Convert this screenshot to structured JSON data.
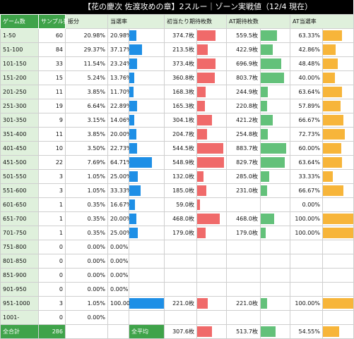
{
  "title": "【花の慶次 佐渡攻めの章】2スルー｜ゾーン実戦値（12/4 現在）",
  "headers": {
    "zone": "ゲーム数",
    "samples": "サンプル数",
    "distribution": "振分",
    "hit_rate": "当選率",
    "avg_bonus": "初当たり期待枚数",
    "at_bonus": "AT期待枚数",
    "at_hit_rate": "AT当選率"
  },
  "colors": {
    "header_green": "#3fa34a",
    "zone_bg": "#dff0dc",
    "hit_rate_bar": "#1e8fe6",
    "avg_bar": "#f06a6a",
    "at_bar": "#63c17a",
    "at_rate_bar": "#f7b53a"
  },
  "rows": [
    {
      "zone": "1-50",
      "samples": "60",
      "dist": "20.98%",
      "rate": "20.98%",
      "rate_v": 20.98,
      "avg": "374.7枚",
      "avg_v": 374.7,
      "at": "559.5枚",
      "at_v": 559.5,
      "atr": "63.33%",
      "atr_v": 63.33
    },
    {
      "zone": "51-100",
      "samples": "84",
      "dist": "29.37%",
      "rate": "37.17%",
      "rate_v": 37.17,
      "avg": "213.5枚",
      "avg_v": 213.5,
      "at": "422.9枚",
      "at_v": 422.9,
      "atr": "42.86%",
      "atr_v": 42.86
    },
    {
      "zone": "101-150",
      "samples": "33",
      "dist": "11.54%",
      "rate": "23.24%",
      "rate_v": 23.24,
      "avg": "373.4枚",
      "avg_v": 373.4,
      "at": "696.9枚",
      "at_v": 696.9,
      "atr": "48.48%",
      "atr_v": 48.48
    },
    {
      "zone": "151-200",
      "samples": "15",
      "dist": "5.24%",
      "rate": "13.76%",
      "rate_v": 13.76,
      "avg": "360.8枚",
      "avg_v": 360.8,
      "at": "803.7枚",
      "at_v": 803.7,
      "atr": "40.00%",
      "atr_v": 40.0
    },
    {
      "zone": "201-250",
      "samples": "11",
      "dist": "3.85%",
      "rate": "11.70%",
      "rate_v": 11.7,
      "avg": "168.3枚",
      "avg_v": 168.3,
      "at": "244.9枚",
      "at_v": 244.9,
      "atr": "63.64%",
      "atr_v": 63.64
    },
    {
      "zone": "251-300",
      "samples": "19",
      "dist": "6.64%",
      "rate": "22.89%",
      "rate_v": 22.89,
      "avg": "165.3枚",
      "avg_v": 165.3,
      "at": "220.8枚",
      "at_v": 220.8,
      "atr": "57.89%",
      "atr_v": 57.89
    },
    {
      "zone": "301-350",
      "samples": "9",
      "dist": "3.15%",
      "rate": "14.06%",
      "rate_v": 14.06,
      "avg": "304.1枚",
      "avg_v": 304.1,
      "at": "421.2枚",
      "at_v": 421.2,
      "atr": "66.67%",
      "atr_v": 66.67
    },
    {
      "zone": "351-400",
      "samples": "11",
      "dist": "3.85%",
      "rate": "20.00%",
      "rate_v": 20.0,
      "avg": "204.7枚",
      "avg_v": 204.7,
      "at": "254.8枚",
      "at_v": 254.8,
      "atr": "72.73%",
      "atr_v": 72.73
    },
    {
      "zone": "401-450",
      "samples": "10",
      "dist": "3.50%",
      "rate": "22.73%",
      "rate_v": 22.73,
      "avg": "544.5枚",
      "avg_v": 544.5,
      "at": "883.7枚",
      "at_v": 883.7,
      "atr": "60.00%",
      "atr_v": 60.0
    },
    {
      "zone": "451-500",
      "samples": "22",
      "dist": "7.69%",
      "rate": "64.71%",
      "rate_v": 64.71,
      "avg": "548.9枚",
      "avg_v": 548.9,
      "at": "829.7枚",
      "at_v": 829.7,
      "atr": "63.64%",
      "atr_v": 63.64
    },
    {
      "zone": "501-550",
      "samples": "3",
      "dist": "1.05%",
      "rate": "25.00%",
      "rate_v": 25.0,
      "avg": "132.0枚",
      "avg_v": 132.0,
      "at": "285.0枚",
      "at_v": 285.0,
      "atr": "33.33%",
      "atr_v": 33.33
    },
    {
      "zone": "551-600",
      "samples": "3",
      "dist": "1.05%",
      "rate": "33.33%",
      "rate_v": 33.33,
      "avg": "185.0枚",
      "avg_v": 185.0,
      "at": "231.0枚",
      "at_v": 231.0,
      "atr": "66.67%",
      "atr_v": 66.67
    },
    {
      "zone": "601-650",
      "samples": "1",
      "dist": "0.35%",
      "rate": "16.67%",
      "rate_v": 16.67,
      "avg": "59.0枚",
      "avg_v": 59.0,
      "at": "",
      "at_v": 0,
      "atr": "0.00%",
      "atr_v": 0
    },
    {
      "zone": "651-700",
      "samples": "1",
      "dist": "0.35%",
      "rate": "20.00%",
      "rate_v": 20.0,
      "avg": "468.0枚",
      "avg_v": 468.0,
      "at": "468.0枚",
      "at_v": 468.0,
      "atr": "100.00%",
      "atr_v": 100.0
    },
    {
      "zone": "701-750",
      "samples": "1",
      "dist": "0.35%",
      "rate": "25.00%",
      "rate_v": 25.0,
      "avg": "179.0枚",
      "avg_v": 179.0,
      "at": "179.0枚",
      "at_v": 179.0,
      "atr": "100.00%",
      "atr_v": 100.0
    },
    {
      "zone": "751-800",
      "samples": "0",
      "dist": "0.00%",
      "rate": "0.00%",
      "rate_v": 0,
      "avg": "",
      "avg_v": 0,
      "at": "",
      "at_v": 0,
      "atr": "",
      "atr_v": 0
    },
    {
      "zone": "801-850",
      "samples": "0",
      "dist": "0.00%",
      "rate": "0.00%",
      "rate_v": 0,
      "avg": "",
      "avg_v": 0,
      "at": "",
      "at_v": 0,
      "atr": "",
      "atr_v": 0
    },
    {
      "zone": "851-900",
      "samples": "0",
      "dist": "0.00%",
      "rate": "0.00%",
      "rate_v": 0,
      "avg": "",
      "avg_v": 0,
      "at": "",
      "at_v": 0,
      "atr": "",
      "atr_v": 0
    },
    {
      "zone": "901-950",
      "samples": "0",
      "dist": "0.00%",
      "rate": "0.00%",
      "rate_v": 0,
      "avg": "",
      "avg_v": 0,
      "at": "",
      "at_v": 0,
      "atr": "",
      "atr_v": 0
    },
    {
      "zone": "951-1000",
      "samples": "3",
      "dist": "1.05%",
      "rate": "100.00%",
      "rate_v": 100.0,
      "avg": "221.0枚",
      "avg_v": 221.0,
      "at": "221.0枚",
      "at_v": 221.0,
      "atr": "100.00%",
      "atr_v": 100.0
    },
    {
      "zone": "1001-",
      "samples": "0",
      "dist": "0.00%",
      "rate": "",
      "rate_v": 0,
      "avg": "",
      "avg_v": 0,
      "at": "",
      "at_v": 0,
      "atr": "",
      "atr_v": 0
    }
  ],
  "footer": {
    "total_label": "全合計",
    "total_samples": "286",
    "avg_label": "全平均",
    "avg_bonus": "307.6枚",
    "avg_bonus_v": 307.6,
    "avg_at": "513.7枚",
    "avg_at_v": 513.7,
    "avg_at_rate": "54.55%",
    "avg_at_rate_v": 54.55
  },
  "scales": {
    "rate_max": 100,
    "avg_max": 600,
    "at_max": 1000,
    "atr_max": 100
  }
}
